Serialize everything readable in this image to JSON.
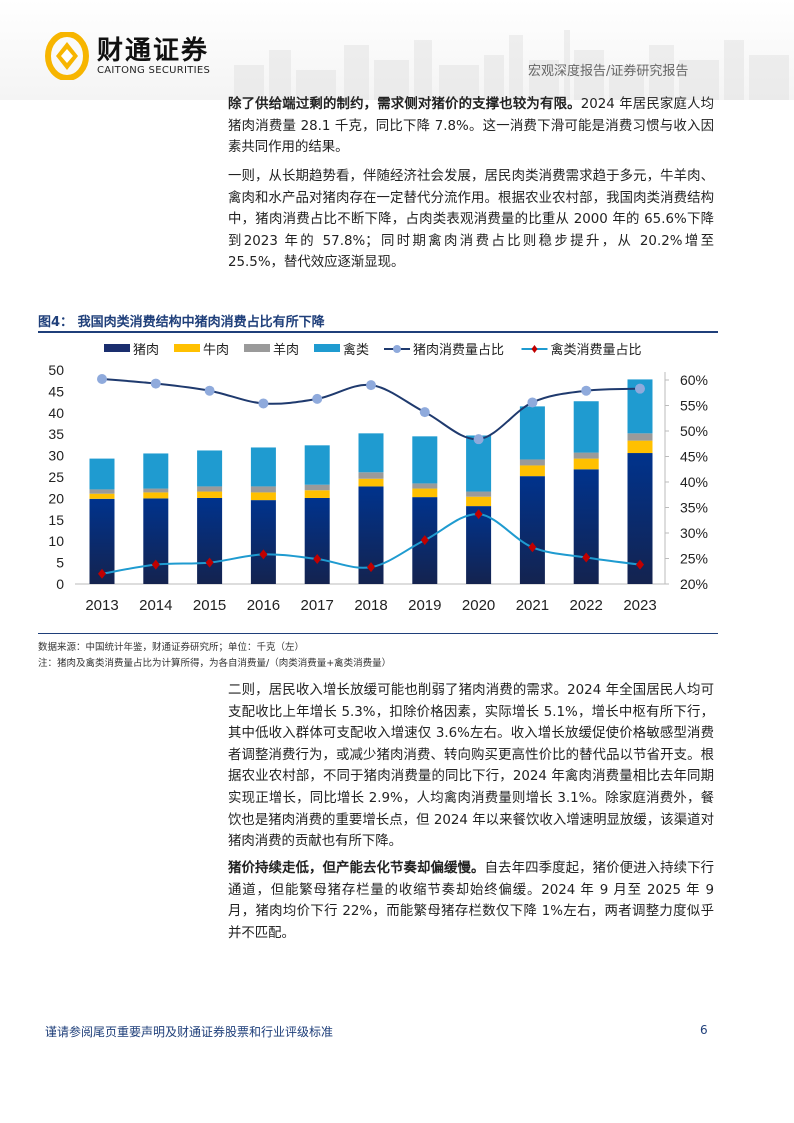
{
  "header": {
    "company_cn": "财通证券",
    "company_en": "CAITONG SECURITIES",
    "report_type": "宏观深度报告/证券研究报告"
  },
  "paragraphs": [
    {
      "bold": "除了供给端过剩的制约，需求侧对猪价的支撑也较为有限。",
      "text": "2024 年居民家庭人均猪肉消费量 28.1 千克，同比下降 7.8%。这一消费下滑可能是消费习惯与收入因素共同作用的结果。"
    },
    {
      "bold": "",
      "text": "一则，从长期趋势看，伴随经济社会发展，居民肉类消费需求趋于多元，牛羊肉、禽肉和水产品对猪肉存在一定替代分流作用。根据农业农村部，我国肉类消费结构中，猪肉消费占比不断下降，占肉类表观消费量的比重从 2000 年的 65.6%下降到2023 年的 57.8%；同时期禽肉消费占比则稳步提升，从 20.2%增至 25.5%，替代效应逐渐显现。"
    },
    {
      "bold": "",
      "text": "二则，居民收入增长放缓可能也削弱了猪肉消费的需求。2024 年全国居民人均可支配收比上年增长 5.3%，扣除价格因素，实际增长 5.1%，增长中枢有所下行，其中低收入群体可支配收入增速仅 3.6%左右。收入增长放缓促使价格敏感型消费者调整消费行为，或减少猪肉消费、转向购买更高性价比的替代品以节省开支。根据农业农村部，不同于猪肉消费量的同比下行，2024 年禽肉消费量相比去年同期实现正增长，同比增长 2.9%，人均禽肉消费量则增长 3.1%。除家庭消费外，餐饮也是猪肉消费的重要增长点，但 2024 年以来餐饮收入增速明显放缓，该渠道对猪肉消费的贡献也有所下降。"
    },
    {
      "bold": "猪价持续走低，但产能去化节奏却偏缓慢。",
      "text": "自去年四季度起，猪价便进入持续下行通道，但能繁母猪存栏量的收缩节奏却始终偏缓。2024 年 9 月至 2025 年 9 月，猪肉均价下行 22%，而能繁母猪存栏数仅下降 1%左右，两者调整力度似乎并不匹配。"
    }
  ],
  "figure": {
    "label": "图4：",
    "title": "我国肉类消费结构中猪肉消费占比有所下降",
    "source": "数据来源：中国统计年鉴，财通证券研究所；单位：千克（左）",
    "note": "注：猪肉及禽类消费量占比为计算所得，为各自消费量/（肉类消费量+禽类消费量）"
  },
  "chart_data": {
    "type": "bar",
    "stacked": true,
    "categories": [
      "2013",
      "2014",
      "2015",
      "2016",
      "2017",
      "2018",
      "2019",
      "2020",
      "2021",
      "2022",
      "2023"
    ],
    "series": [
      {
        "name": "猪肉",
        "type": "bar",
        "axis": "left",
        "color": "#1a2e6e",
        "values": [
          19.9,
          20.0,
          20.1,
          19.6,
          20.1,
          22.8,
          20.3,
          18.2,
          25.2,
          26.8,
          30.6
        ]
      },
      {
        "name": "牛肉",
        "type": "bar",
        "axis": "left",
        "color": "#ffc000",
        "values": [
          1.2,
          1.4,
          1.5,
          1.8,
          1.8,
          1.8,
          2.0,
          2.2,
          2.5,
          2.5,
          2.9
        ]
      },
      {
        "name": "羊肉",
        "type": "bar",
        "axis": "left",
        "color": "#9a9a9a",
        "values": [
          1.0,
          0.9,
          1.2,
          1.4,
          1.3,
          1.5,
          1.2,
          1.2,
          1.4,
          1.4,
          1.7
        ]
      },
      {
        "name": "禽类",
        "type": "bar",
        "axis": "left",
        "color": "#1f9bd0",
        "values": [
          7.2,
          8.2,
          8.4,
          9.1,
          9.2,
          9.1,
          11.0,
          13.1,
          12.4,
          12.0,
          12.6
        ]
      },
      {
        "name": "猪肉消费量占比",
        "type": "line",
        "axis": "right",
        "color": "#1f3a6e",
        "marker_color": "#8faadc",
        "values": [
          60.2,
          59.3,
          57.9,
          55.4,
          56.3,
          59.0,
          53.7,
          48.4,
          55.6,
          57.9,
          58.3
        ]
      },
      {
        "name": "禽类消费量占比",
        "type": "line",
        "axis": "right",
        "color": "#1f9bd0",
        "marker_color": "#c00000",
        "values": [
          22.0,
          23.8,
          24.2,
          25.8,
          24.9,
          23.3,
          28.6,
          33.7,
          27.2,
          25.2,
          23.8
        ]
      }
    ],
    "left_axis": {
      "ylim": [
        0,
        50
      ],
      "ticks": [
        "0",
        "5",
        "10",
        "15",
        "20",
        "25",
        "30",
        "35",
        "40",
        "45",
        "50"
      ]
    },
    "right_axis": {
      "ylim": [
        20,
        62
      ],
      "ticks": [
        "20%",
        "25%",
        "30%",
        "35%",
        "40%",
        "45%",
        "50%",
        "55%",
        "60%"
      ]
    },
    "legend": "top",
    "grid": false
  },
  "footer": {
    "disclaimer": "谨请参阅尾页重要声明及财通证券股票和行业评级标准",
    "page": "6"
  }
}
